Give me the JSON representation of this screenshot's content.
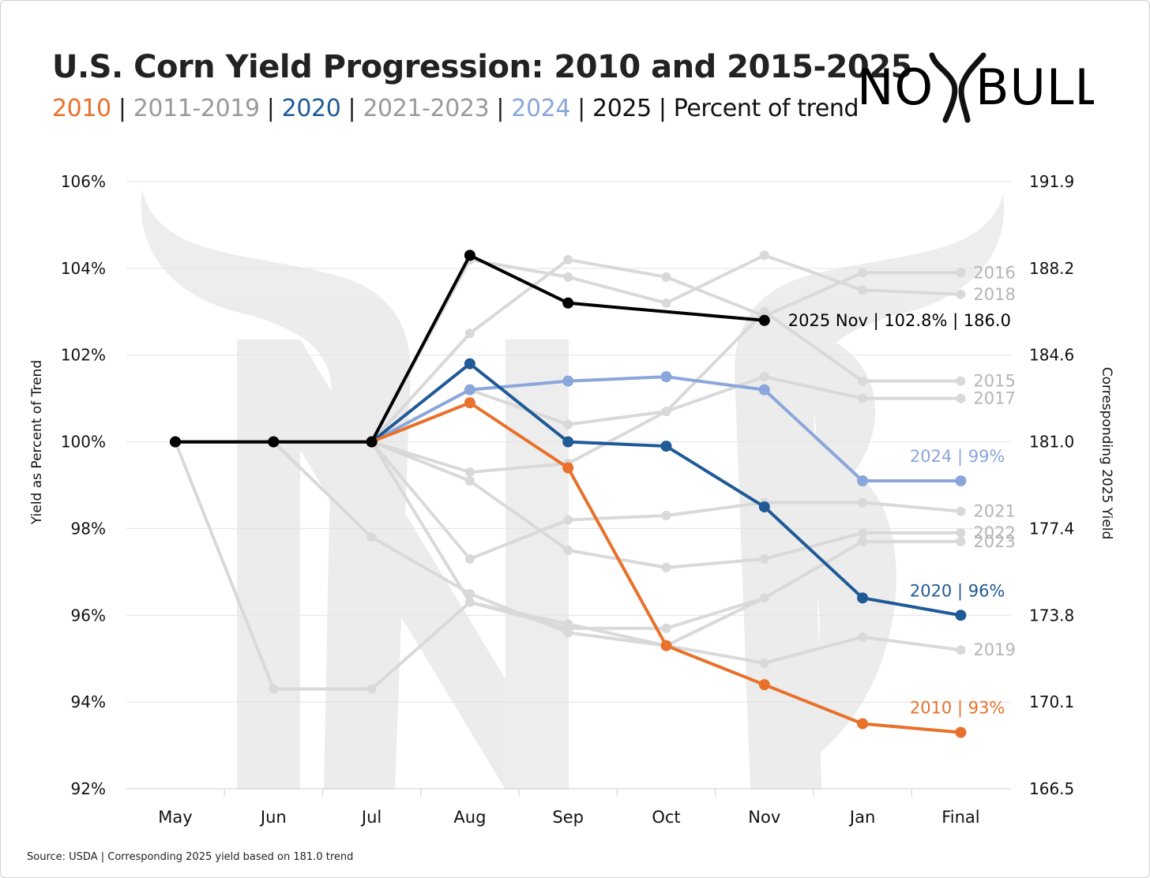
{
  "header": {
    "title": "U.S. Corn Yield Progression: 2010 and 2015-2025",
    "subtitle_parts": [
      {
        "text": "2010",
        "color": "#E8712B"
      },
      {
        "text": " | ",
        "color": "#222222"
      },
      {
        "text": "2011-2019",
        "color": "#9A9A9A"
      },
      {
        "text": " | ",
        "color": "#222222"
      },
      {
        "text": "2020",
        "color": "#1F5A96"
      },
      {
        "text": " | ",
        "color": "#222222"
      },
      {
        "text": "2021-2023",
        "color": "#9A9A9A"
      },
      {
        "text": " | ",
        "color": "#222222"
      },
      {
        "text": "2024",
        "color": "#8AA6DA"
      },
      {
        "text": " | ",
        "color": "#222222"
      },
      {
        "text": "2025 | Percent of trend",
        "color": "#111111"
      }
    ]
  },
  "logo": {
    "text_left": "NO",
    "text_right": "BULL"
  },
  "footer": {
    "source": "Source: USDA | Corresponding 2025 yield based on 181.0 trend"
  },
  "chart_data": {
    "type": "line",
    "categories": [
      "May",
      "Jun",
      "Jul",
      "Aug",
      "Sep",
      "Oct",
      "Nov",
      "Jan",
      "Final"
    ],
    "ylabel": "Yield as Percent of Trend",
    "y2label": "Corresponding 2025 Yield",
    "ylim": [
      92,
      106
    ],
    "yticks": [
      {
        "value": 106,
        "label": "106%"
      },
      {
        "value": 104,
        "label": "104%"
      },
      {
        "value": 102,
        "label": "102%"
      },
      {
        "value": 100,
        "label": "100%"
      },
      {
        "value": 98,
        "label": "98%"
      },
      {
        "value": 96,
        "label": "96%"
      },
      {
        "value": 94,
        "label": "94%"
      },
      {
        "value": 92,
        "label": "92%"
      }
    ],
    "y2ticks": [
      {
        "value": 106,
        "label": "191.9"
      },
      {
        "value": 104,
        "label": "188.2"
      },
      {
        "value": 102,
        "label": "184.6"
      },
      {
        "value": 100,
        "label": "181.0"
      },
      {
        "value": 98,
        "label": "177.4"
      },
      {
        "value": 96,
        "label": "173.8"
      },
      {
        "value": 94,
        "label": "170.1"
      },
      {
        "value": 92,
        "label": "166.5"
      }
    ],
    "grid": true,
    "series": [
      {
        "name": "2015",
        "label": "2015",
        "color": "#D9D9D9",
        "label_color": "#B5B5B5",
        "values": [
          100,
          94.3,
          94.3,
          96.3,
          95.7,
          95.7,
          96.4,
          97.7,
          97.7
        ],
        "end_label": false
      },
      {
        "name": "2016",
        "label": "2016",
        "color": "#D9D9D9",
        "label_color": "#B5B5B5",
        "values": [
          100,
          100,
          100,
          102.5,
          104.2,
          103.8,
          102.9,
          103.9,
          103.9
        ],
        "end_label": true
      },
      {
        "name": "2017",
        "label": "2017",
        "color": "#D9D9D9",
        "label_color": "#B5B5B5",
        "values": [
          100,
          100,
          100,
          101.2,
          100.4,
          100.7,
          101.5,
          101.0,
          101.0
        ],
        "end_label": true
      },
      {
        "name": "2018",
        "label": "2018",
        "color": "#D9D9D9",
        "label_color": "#B5B5B5",
        "values": [
          100,
          100,
          100,
          104.2,
          103.8,
          103.2,
          104.3,
          103.5,
          103.4
        ],
        "end_label": true
      },
      {
        "name": "2015b",
        "label": "2015",
        "color": "#D9D9D9",
        "label_color": "#B5B5B5",
        "values": [
          100,
          100,
          100,
          99.3,
          99.5,
          100.7,
          103.0,
          101.4,
          101.4
        ],
        "end_label": true
      },
      {
        "name": "2019",
        "label": "2019",
        "color": "#D9D9D9",
        "label_color": "#B5B5B5",
        "values": [
          100,
          100,
          97.8,
          96.5,
          95.6,
          95.3,
          94.9,
          95.5,
          95.2
        ],
        "end_label": true
      },
      {
        "name": "2021",
        "label": "2021",
        "color": "#D9D9D9",
        "label_color": "#B5B5B5",
        "values": [
          100,
          100,
          100,
          97.3,
          98.2,
          98.3,
          98.6,
          98.6,
          98.4
        ],
        "end_label": true
      },
      {
        "name": "2022",
        "label": "2022",
        "color": "#D9D9D9",
        "label_color": "#B5B5B5",
        "values": [
          100,
          100,
          100,
          99.1,
          97.5,
          97.1,
          97.3,
          97.9,
          97.9
        ],
        "end_label": true
      },
      {
        "name": "2023",
        "label": "2023",
        "color": "#D9D9D9",
        "label_color": "#B5B5B5",
        "values": [
          100,
          100,
          100,
          96.3,
          95.8,
          95.3,
          96.4,
          97.7,
          97.7
        ],
        "end_label": true
      },
      {
        "name": "2024",
        "label": "2024 | 99%",
        "color": "#8AA6DA",
        "label_color": "#8AA6DA",
        "values": [
          100,
          100,
          100,
          101.2,
          101.4,
          101.5,
          101.2,
          99.1,
          99.1
        ],
        "end_label": true,
        "highlight": true
      },
      {
        "name": "2020",
        "label": "2020 | 96%",
        "color": "#1F5A96",
        "label_color": "#1F5A96",
        "values": [
          100,
          100,
          100,
          101.8,
          100.0,
          99.9,
          98.5,
          96.4,
          96.0
        ],
        "end_label": true,
        "highlight": true
      },
      {
        "name": "2010",
        "label": "2010 | 93%",
        "color": "#E8712B",
        "label_color": "#E8712B",
        "values": [
          100,
          100,
          100,
          100.9,
          99.4,
          95.3,
          94.4,
          93.5,
          93.3
        ],
        "end_label": true,
        "highlight": true
      },
      {
        "name": "2025",
        "label": "2025 Nov | 102.8% | 186.0",
        "color": "#000000",
        "label_color": "#000000",
        "values": [
          100,
          100,
          100,
          104.3,
          103.2,
          null,
          102.8,
          null,
          null
        ],
        "end_label": true,
        "highlight": true
      }
    ]
  }
}
